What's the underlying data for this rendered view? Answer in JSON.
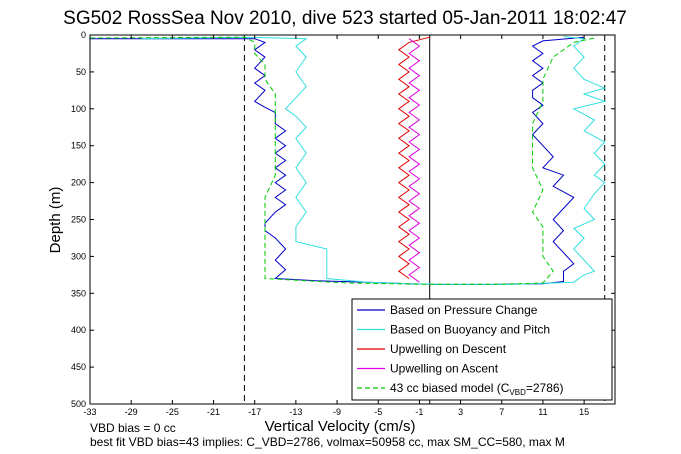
{
  "chart_data": {
    "type": "line",
    "title": "SG502 RossSea Nov 2010, dive 523 started 05-Jan-2011 18:02:47",
    "xlabel": "Vertical Velocity (cm/s)",
    "ylabel": "Depth (m)",
    "xlim": [
      -33,
      18
    ],
    "ylim": [
      0,
      500
    ],
    "y_reversed": true,
    "x_ticks": [
      -33,
      -29,
      -25,
      -21,
      -17,
      -13,
      -9,
      -5,
      -1,
      3,
      7,
      11,
      15
    ],
    "y_ticks": [
      0,
      50,
      100,
      150,
      200,
      250,
      300,
      350,
      400,
      450,
      500
    ],
    "vertical_lines": [
      {
        "x": -18,
        "style": "dashed"
      },
      {
        "x": 0,
        "style": "solid"
      },
      {
        "x": 17,
        "style": "dashed"
      }
    ],
    "legend_placement": "bottom-right",
    "grid": false,
    "series": [
      {
        "name": "Based on Pressure Change",
        "color": "#0000cc",
        "points": [
          [
            -33,
            5
          ],
          [
            -20,
            5
          ],
          [
            -17,
            5
          ],
          [
            -16,
            10
          ],
          [
            -17,
            20
          ],
          [
            -16,
            30
          ],
          [
            -17,
            45
          ],
          [
            -16,
            55
          ],
          [
            -17,
            65
          ],
          [
            -16,
            75
          ],
          [
            -17,
            90
          ],
          [
            -16,
            98
          ],
          [
            -15,
            105
          ],
          [
            -15,
            120
          ],
          [
            -14,
            130
          ],
          [
            -15,
            140
          ],
          [
            -14,
            150
          ],
          [
            -15,
            160
          ],
          [
            -14,
            170
          ],
          [
            -15,
            180
          ],
          [
            -14,
            190
          ],
          [
            -15,
            200
          ],
          [
            -14,
            210
          ],
          [
            -15,
            220
          ],
          [
            -14,
            230
          ],
          [
            -15,
            240
          ],
          [
            -16,
            255
          ],
          [
            -16,
            265
          ],
          [
            -15,
            275
          ],
          [
            -14,
            290
          ],
          [
            -15,
            305
          ],
          [
            -14,
            318
          ],
          [
            -15,
            330
          ],
          [
            -11,
            333
          ],
          [
            -6,
            335
          ],
          [
            -2,
            337
          ],
          [
            1,
            338
          ],
          [
            6,
            338
          ],
          [
            11,
            337
          ],
          [
            13,
            334
          ],
          [
            13,
            320
          ],
          [
            14,
            310
          ],
          [
            13,
            295
          ],
          [
            12,
            280
          ],
          [
            13,
            265
          ],
          [
            12,
            250
          ],
          [
            13,
            235
          ],
          [
            14,
            220
          ],
          [
            12,
            205
          ],
          [
            13,
            190
          ],
          [
            11,
            180
          ],
          [
            12,
            165
          ],
          [
            11,
            150
          ],
          [
            10,
            135
          ],
          [
            11,
            120
          ],
          [
            10,
            105
          ],
          [
            11,
            95
          ],
          [
            10,
            85
          ],
          [
            10,
            75
          ],
          [
            11,
            65
          ],
          [
            10,
            55
          ],
          [
            11,
            45
          ],
          [
            10,
            35
          ],
          [
            11,
            25
          ],
          [
            10,
            15
          ],
          [
            11,
            8
          ],
          [
            15,
            3
          ]
        ]
      },
      {
        "name": "Based on Buoyancy and Pitch",
        "color": "#33e0e0",
        "points": [
          [
            -28,
            5
          ],
          [
            -18,
            3
          ],
          [
            -12,
            5
          ],
          [
            -13,
            15
          ],
          [
            -12,
            30
          ],
          [
            -13,
            50
          ],
          [
            -12,
            70
          ],
          [
            -13,
            85
          ],
          [
            -14,
            100
          ],
          [
            -13,
            110
          ],
          [
            -12,
            125
          ],
          [
            -13,
            140
          ],
          [
            -12,
            160
          ],
          [
            -13,
            180
          ],
          [
            -12,
            200
          ],
          [
            -13,
            220
          ],
          [
            -12,
            240
          ],
          [
            -13,
            260
          ],
          [
            -13,
            280
          ],
          [
            -10,
            290
          ],
          [
            -10,
            310
          ],
          [
            -10,
            330
          ],
          [
            -6,
            335
          ],
          [
            -2,
            337
          ],
          [
            2,
            338
          ],
          [
            8,
            338
          ],
          [
            14,
            335
          ],
          [
            15,
            325
          ],
          [
            16,
            320
          ],
          [
            15,
            305
          ],
          [
            14,
            290
          ],
          [
            15,
            275
          ],
          [
            14,
            262
          ],
          [
            16,
            250
          ],
          [
            15,
            235
          ],
          [
            16,
            215
          ],
          [
            17,
            200
          ],
          [
            16,
            190
          ],
          [
            17,
            175
          ],
          [
            16,
            160
          ],
          [
            17,
            145
          ],
          [
            15,
            130
          ],
          [
            16,
            115
          ],
          [
            14,
            100
          ],
          [
            17,
            90
          ],
          [
            15,
            80
          ],
          [
            17,
            72
          ],
          [
            15,
            60
          ],
          [
            14,
            45
          ],
          [
            15,
            30
          ],
          [
            14,
            15
          ],
          [
            15,
            5
          ],
          [
            13,
            2
          ]
        ]
      },
      {
        "name": "Upwelling on Descent",
        "color": "#e00000",
        "points": [
          [
            0,
            3
          ],
          [
            -2,
            10
          ],
          [
            -3,
            20
          ],
          [
            -2,
            30
          ],
          [
            -3,
            40
          ],
          [
            -2,
            50
          ],
          [
            -3,
            60
          ],
          [
            -2,
            70
          ],
          [
            -3,
            80
          ],
          [
            -2,
            90
          ],
          [
            -3,
            100
          ],
          [
            -2,
            110
          ],
          [
            -3,
            120
          ],
          [
            -2,
            130
          ],
          [
            -3,
            140
          ],
          [
            -2,
            150
          ],
          [
            -3,
            160
          ],
          [
            -2,
            170
          ],
          [
            -3,
            180
          ],
          [
            -2,
            190
          ],
          [
            -3,
            200
          ],
          [
            -2,
            210
          ],
          [
            -3,
            220
          ],
          [
            -2,
            230
          ],
          [
            -3,
            240
          ],
          [
            -2,
            250
          ],
          [
            -3,
            260
          ],
          [
            -2,
            270
          ],
          [
            -3,
            280
          ],
          [
            -2,
            290
          ],
          [
            -3,
            300
          ],
          [
            -2,
            310
          ],
          [
            -3,
            320
          ],
          [
            -2,
            330
          ]
        ]
      },
      {
        "name": "Upwelling on Ascent",
        "color": "#e000e0",
        "points": [
          [
            -1,
            335
          ],
          [
            -2,
            325
          ],
          [
            -1,
            315
          ],
          [
            -2,
            305
          ],
          [
            -1,
            295
          ],
          [
            -2,
            285
          ],
          [
            -1,
            275
          ],
          [
            -2,
            265
          ],
          [
            -1,
            255
          ],
          [
            -2,
            245
          ],
          [
            -1,
            235
          ],
          [
            -2,
            225
          ],
          [
            -1,
            215
          ],
          [
            -2,
            205
          ],
          [
            -1,
            195
          ],
          [
            -2,
            185
          ],
          [
            -1,
            175
          ],
          [
            -2,
            165
          ],
          [
            -1,
            155
          ],
          [
            -2,
            145
          ],
          [
            -1,
            135
          ],
          [
            -2,
            125
          ],
          [
            -1,
            115
          ],
          [
            -2,
            105
          ],
          [
            -1,
            95
          ],
          [
            -2,
            85
          ],
          [
            -1,
            75
          ],
          [
            -2,
            65
          ],
          [
            -1,
            55
          ],
          [
            -2,
            45
          ],
          [
            -1,
            35
          ],
          [
            -2,
            25
          ],
          [
            -1,
            15
          ],
          [
            -2,
            5
          ]
        ]
      },
      {
        "name_parts": [
          "43 cc biased model (C",
          "VBD",
          "=2786)"
        ],
        "color": "#00cc00",
        "dashed": true,
        "points": [
          [
            -33,
            4
          ],
          [
            -18,
            3
          ],
          [
            -17,
            10
          ],
          [
            -17,
            25
          ],
          [
            -16,
            40
          ],
          [
            -16,
            60
          ],
          [
            -15,
            80
          ],
          [
            -15,
            100
          ],
          [
            -15,
            130
          ],
          [
            -15,
            160
          ],
          [
            -15,
            190
          ],
          [
            -16,
            220
          ],
          [
            -16,
            250
          ],
          [
            -16,
            280
          ],
          [
            -16,
            310
          ],
          [
            -16,
            330
          ],
          [
            -8,
            336
          ],
          [
            0,
            338
          ],
          [
            6,
            338
          ],
          [
            11,
            336
          ],
          [
            12,
            320
          ],
          [
            11,
            300
          ],
          [
            11,
            280
          ],
          [
            11,
            260
          ],
          [
            10,
            240
          ],
          [
            11,
            210
          ],
          [
            10,
            180
          ],
          [
            10,
            150
          ],
          [
            10,
            120
          ],
          [
            11,
            90
          ],
          [
            11,
            60
          ],
          [
            12,
            30
          ],
          [
            14,
            10
          ],
          [
            16,
            4
          ]
        ]
      }
    ]
  },
  "footnotes": {
    "line1": "VBD bias = 0 cc",
    "line2": "best fit VBD bias=43 implies: C_VBD=2786, volmax=50958 cc, max SM_CC=580, max M"
  }
}
